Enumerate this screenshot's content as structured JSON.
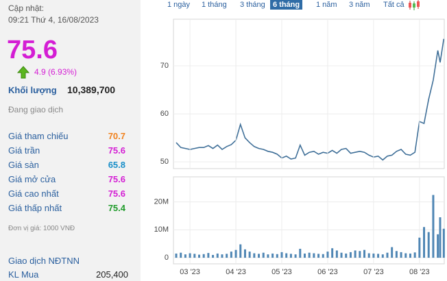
{
  "panel": {
    "updated_label": "Cập nhật:",
    "updated_time": "09:21 Thứ 4, 16/08/2023",
    "price": "75.6",
    "change": "4.9 (6.93%)",
    "volume_label": "Khối lượng",
    "volume": "10,389,700",
    "status": "Đang giao dịch",
    "rows": [
      {
        "label": "Giá tham chiếu",
        "value": "70.7",
        "color": "#f0821e"
      },
      {
        "label": "Giá trần",
        "value": "75.6",
        "color": "#d41ed4"
      },
      {
        "label": "Giá sàn",
        "value": "65.8",
        "color": "#1a8fc9"
      },
      {
        "label": "Giá mở cửa",
        "value": "75.6",
        "color": "#d41ed4"
      },
      {
        "label": "Giá cao nhất",
        "value": "75.6",
        "color": "#d41ed4"
      },
      {
        "label": "Giá thấp nhất",
        "value": "75.4",
        "color": "#1f9b2a"
      }
    ],
    "unit_note": "Đơn vị giá: 1000 VNĐ",
    "foreign_title": "Giao dịch NĐTNN",
    "buy_label": "KL Mua",
    "buy_value": "205,400"
  },
  "tabs": [
    "1 ngày",
    "1 tháng",
    "3 tháng",
    "6 tháng",
    "1 năm",
    "3 năm",
    "Tất cả"
  ],
  "active_tab": 3,
  "chart_data": [
    {
      "type": "line",
      "color": "#3f6f98",
      "x": [
        2.7,
        2.8,
        2.9,
        3.0,
        3.1,
        3.2,
        3.3,
        3.4,
        3.5,
        3.6,
        3.7,
        3.8,
        3.9,
        4.0,
        4.1,
        4.2,
        4.3,
        4.4,
        4.5,
        4.6,
        4.7,
        4.8,
        4.9,
        5.0,
        5.1,
        5.2,
        5.3,
        5.4,
        5.5,
        5.6,
        5.7,
        5.8,
        5.9,
        6.0,
        6.1,
        6.2,
        6.3,
        6.4,
        6.5,
        6.6,
        6.7,
        6.8,
        6.9,
        7.0,
        7.1,
        7.2,
        7.3,
        7.4,
        7.5,
        7.6,
        7.7,
        7.8,
        7.9,
        8.0,
        8.1,
        8.2,
        8.3,
        8.4,
        8.45,
        8.53
      ],
      "values": [
        54.0,
        53.0,
        52.8,
        52.6,
        52.8,
        53.0,
        53.0,
        53.4,
        52.8,
        53.5,
        52.6,
        53.2,
        53.6,
        54.5,
        57.8,
        55.0,
        54.0,
        53.2,
        52.8,
        52.6,
        52.2,
        52.0,
        51.6,
        50.8,
        51.2,
        50.6,
        50.8,
        53.5,
        51.4,
        52.0,
        52.2,
        51.6,
        52.0,
        51.8,
        52.4,
        51.8,
        52.6,
        52.8,
        51.8,
        52.0,
        52.2,
        52.0,
        51.4,
        51.0,
        51.2,
        50.4,
        51.2,
        51.4,
        52.2,
        52.6,
        51.6,
        51.4,
        52.0,
        58.4,
        58.0,
        63.0,
        67.0,
        73.2,
        70.7,
        75.6
      ],
      "xlim": [
        2.64,
        8.54
      ],
      "ylim": [
        48.6,
        79.7
      ],
      "yticks": [
        50,
        60,
        70
      ],
      "grid": true
    },
    {
      "type": "bar",
      "color": "#4f86b4",
      "x": [
        2.7,
        2.8,
        2.9,
        3.0,
        3.1,
        3.2,
        3.3,
        3.4,
        3.5,
        3.6,
        3.7,
        3.8,
        3.9,
        4.0,
        4.1,
        4.2,
        4.3,
        4.4,
        4.5,
        4.6,
        4.7,
        4.8,
        4.9,
        5.0,
        5.1,
        5.2,
        5.3,
        5.4,
        5.5,
        5.6,
        5.7,
        5.8,
        5.9,
        6.0,
        6.1,
        6.2,
        6.3,
        6.4,
        6.5,
        6.6,
        6.7,
        6.8,
        6.9,
        7.0,
        7.1,
        7.2,
        7.3,
        7.4,
        7.5,
        7.6,
        7.7,
        7.8,
        7.9,
        8.0,
        8.1,
        8.2,
        8.3,
        8.4,
        8.45,
        8.53
      ],
      "values": [
        1500000,
        1800000,
        1200000,
        1600000,
        1400000,
        1100000,
        1300000,
        1700000,
        1000000,
        1500000,
        1200000,
        1400000,
        2200000,
        2800000,
        4800000,
        3000000,
        2200000,
        1600000,
        1400000,
        1800000,
        1200000,
        1500000,
        1300000,
        2000000,
        1600000,
        1400000,
        1200000,
        3200000,
        1500000,
        1800000,
        1600000,
        1400000,
        1300000,
        2200000,
        3400000,
        2600000,
        1800000,
        1500000,
        2000000,
        2600000,
        2400000,
        2800000,
        1600000,
        1500000,
        1400000,
        1200000,
        1800000,
        3800000,
        2400000,
        2000000,
        1600000,
        1500000,
        1900000,
        7200000,
        11000000,
        9200000,
        22500000,
        8400000,
        14500000,
        10389700
      ],
      "xlim": [
        2.64,
        8.54
      ],
      "ylim": [
        -2200000,
        29000000
      ],
      "yticks": [
        0,
        {
          "value": 10000000,
          "label": "10M"
        },
        {
          "value": 20000000,
          "label": "20M"
        }
      ],
      "xticks": [
        {
          "value": 3,
          "label": "03 '23"
        },
        {
          "value": 4,
          "label": "04 '23"
        },
        {
          "value": 5,
          "label": "05 '23"
        },
        {
          "value": 6,
          "label": "06 '23"
        },
        {
          "value": 7,
          "label": "07 '23"
        },
        {
          "value": 8,
          "label": "08 '23"
        }
      ],
      "grid": true
    }
  ]
}
